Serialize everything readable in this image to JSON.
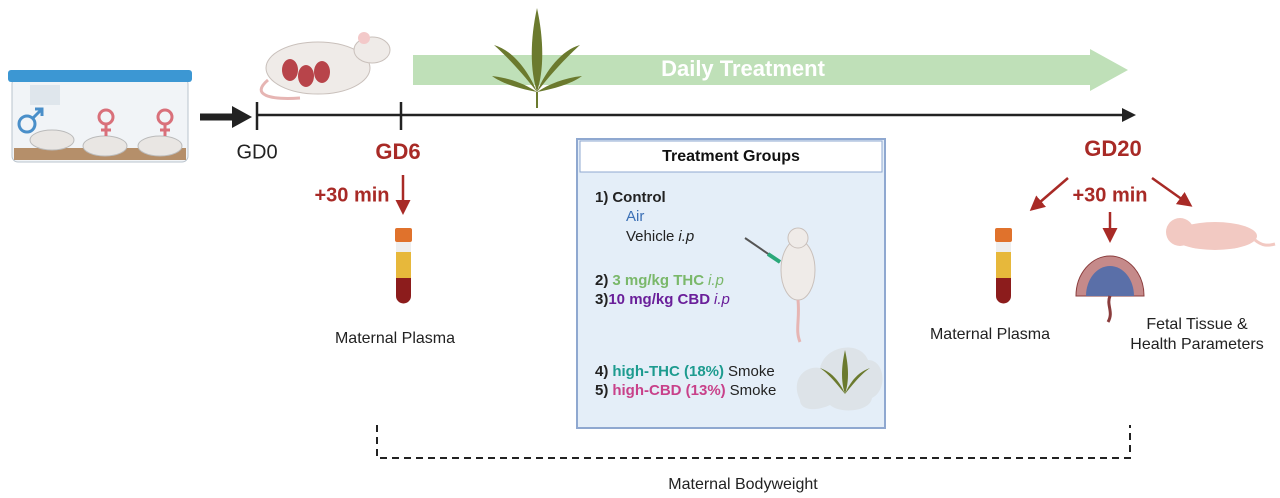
{
  "banner": "Daily Treatment",
  "timeline": {
    "start": "GD0",
    "first_dose": "GD6",
    "end": "GD20"
  },
  "gd6": {
    "delay": "+30 min",
    "sample": "Maternal Plasma"
  },
  "gd20": {
    "delay": "+30 min",
    "maternal_sample": "Maternal Plasma",
    "fetal_samples": [
      "Fetal Tissue &",
      "Health Parameters"
    ]
  },
  "treatment_groups": {
    "title": "Treatment Groups",
    "groups": [
      {
        "number": "1)",
        "name": "Control",
        "options": [
          {
            "text": "Air"
          },
          {
            "text": "Vehicle",
            "route": "i.p"
          }
        ]
      },
      {
        "number": "2)",
        "name": "3 mg/kg THC",
        "route": "i.p"
      },
      {
        "number": "3)",
        "name": "10 mg/kg CBD",
        "route": "i.p"
      },
      {
        "number": "4)",
        "name": "high-THC (18%)",
        "method": "Smoke"
      },
      {
        "number": "5)",
        "name": "high-CBD (13%)",
        "method": "Smoke"
      }
    ]
  },
  "bracket_label": "Maternal Bodyweight"
}
